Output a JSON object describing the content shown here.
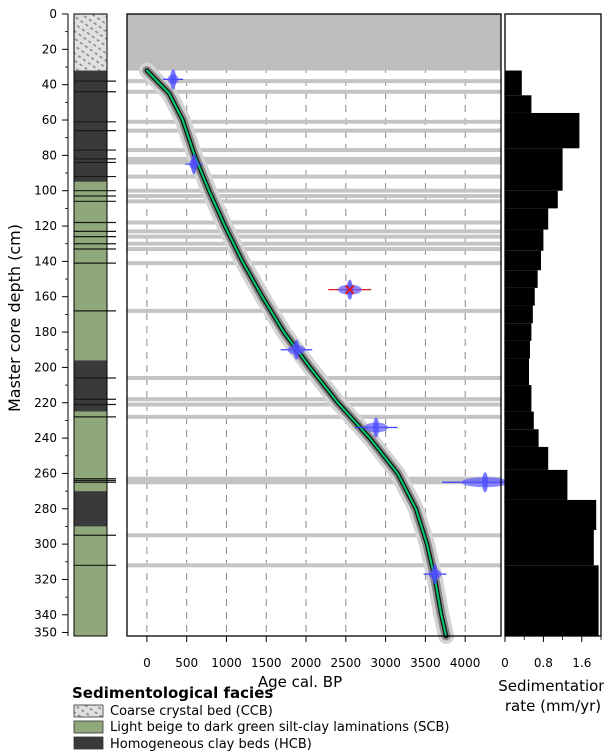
{
  "chart_data": {
    "type": "scatter",
    "panels": [
      {
        "name": "lithology",
        "type": "table",
        "ylabel": "Master core depth (cm)",
        "yticks": [
          0,
          20,
          40,
          60,
          80,
          100,
          120,
          140,
          160,
          180,
          200,
          220,
          240,
          260,
          280,
          300,
          320,
          340,
          350
        ],
        "ylim": [
          0,
          352
        ],
        "facies_sequence": [
          {
            "top": 0,
            "bottom": 32,
            "facies": "CCB"
          },
          {
            "top": 32,
            "bottom": 95,
            "facies": "HCB"
          },
          {
            "top": 95,
            "bottom": 196,
            "facies": "SCB"
          },
          {
            "top": 196,
            "bottom": 225,
            "facies": "HCB"
          },
          {
            "top": 225,
            "bottom": 270,
            "facies": "SCB"
          },
          {
            "top": 270,
            "bottom": 290,
            "facies": "HCB"
          },
          {
            "top": 290,
            "bottom": 352,
            "facies": "SCB"
          }
        ]
      },
      {
        "name": "age-depth",
        "type": "scatter",
        "xlabel": "Age cal. BP",
        "xlim": [
          -250,
          4450
        ],
        "xticks": [
          0,
          500,
          1000,
          1500,
          2000,
          2500,
          3000,
          3500,
          4000
        ],
        "ylim": [
          0,
          352
        ],
        "grid": "vertical dashed",
        "gap_depth_cm": [
          0,
          32
        ],
        "event_layers_cm": [
          38,
          44,
          61,
          66,
          77,
          82,
          84,
          92,
          100,
          103,
          106,
          118,
          123,
          126,
          130,
          133,
          141,
          168,
          206,
          218,
          221,
          228,
          263,
          264,
          265,
          295,
          312
        ],
        "dated_samples": [
          {
            "depth": 37,
            "age": 330,
            "err": 70
          },
          {
            "depth": 85,
            "age": 590,
            "err": 60
          },
          {
            "depth": 156,
            "age": 2550,
            "err": 150,
            "rejected": true
          },
          {
            "depth": 190,
            "age": 1880,
            "err": 110
          },
          {
            "depth": 234,
            "age": 2880,
            "err": 150
          },
          {
            "depth": 265,
            "age": 4250,
            "err": 300
          },
          {
            "depth": 317,
            "age": 3620,
            "err": 80
          }
        ],
        "model_curve": {
          "depth": [
            32,
            45,
            60,
            80,
            100,
            120,
            140,
            160,
            180,
            200,
            220,
            240,
            260,
            280,
            300,
            320,
            340,
            352
          ],
          "age": [
            0,
            280,
            450,
            600,
            780,
            980,
            1200,
            1450,
            1720,
            2050,
            2400,
            2800,
            3150,
            3380,
            3520,
            3620,
            3700,
            3760
          ]
        }
      },
      {
        "name": "sedimentation-rate",
        "type": "bar",
        "xlabel": "Sedimentation rate (mm/yr)",
        "xlim": [
          0,
          2.0
        ],
        "xticks": [
          0,
          0.8,
          1.6
        ],
        "xtick_labels": [
          "0",
          "0.8",
          "1.6"
        ],
        "bins": [
          {
            "top": 32,
            "bottom": 46,
            "rate": 0.35
          },
          {
            "top": 46,
            "bottom": 56,
            "rate": 0.55
          },
          {
            "top": 56,
            "bottom": 76,
            "rate": 1.55
          },
          {
            "top": 76,
            "bottom": 100,
            "rate": 1.2
          },
          {
            "top": 100,
            "bottom": 110,
            "rate": 1.1
          },
          {
            "top": 110,
            "bottom": 122,
            "rate": 0.9
          },
          {
            "top": 122,
            "bottom": 134,
            "rate": 0.8
          },
          {
            "top": 134,
            "bottom": 145,
            "rate": 0.75
          },
          {
            "top": 145,
            "bottom": 155,
            "rate": 0.68
          },
          {
            "top": 155,
            "bottom": 165,
            "rate": 0.62
          },
          {
            "top": 165,
            "bottom": 175,
            "rate": 0.58
          },
          {
            "top": 175,
            "bottom": 185,
            "rate": 0.55
          },
          {
            "top": 185,
            "bottom": 195,
            "rate": 0.52
          },
          {
            "top": 195,
            "bottom": 210,
            "rate": 0.5
          },
          {
            "top": 210,
            "bottom": 225,
            "rate": 0.55
          },
          {
            "top": 225,
            "bottom": 235,
            "rate": 0.6
          },
          {
            "top": 235,
            "bottom": 245,
            "rate": 0.7
          },
          {
            "top": 245,
            "bottom": 258,
            "rate": 0.9
          },
          {
            "top": 258,
            "bottom": 275,
            "rate": 1.3
          },
          {
            "top": 275,
            "bottom": 292,
            "rate": 1.9
          },
          {
            "top": 292,
            "bottom": 312,
            "rate": 1.85
          },
          {
            "top": 312,
            "bottom": 352,
            "rate": 1.95
          }
        ]
      }
    ],
    "legend": {
      "title": "Sedimentological facies",
      "items": [
        {
          "key": "CCB",
          "label": "Coarse crystal bed (CCB)",
          "color": "#c8c8c8",
          "pattern": "hatched"
        },
        {
          "key": "SCB",
          "label": "Light beige to dark green silt-clay laminations (SCB)",
          "color": "#8fa77a"
        },
        {
          "key": "HCB",
          "label": "Homogeneous clay beds (HCB)",
          "color": "#3a3a3a"
        }
      ]
    },
    "colors": {
      "model_line": "#00c86e",
      "dated_samples": "#3c3cff",
      "rejected_sample": "#e41a1c",
      "event_layer": "#c4c4c4",
      "sed_rate_bar": "#000000"
    }
  }
}
